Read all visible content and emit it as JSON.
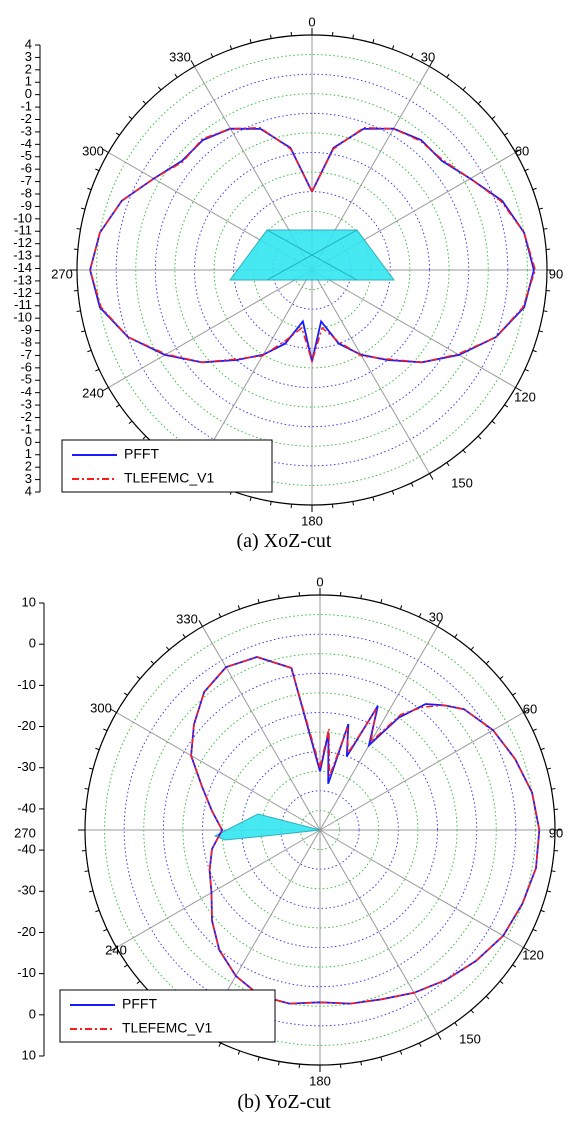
{
  "chart_data": [
    {
      "type": "polar-line",
      "caption": "(a) XoZ-cut",
      "angle_labels": [
        "0",
        "30",
        "60",
        "90",
        "120",
        "150",
        "180",
        "240",
        "270",
        "300",
        "330"
      ],
      "radial_tick_labels": [
        "4",
        "3",
        "2",
        "1",
        "0",
        "-1",
        "-2",
        "-3",
        "-4",
        "-5",
        "-6",
        "-7",
        "-8",
        "-9",
        "-10",
        "-11",
        "-12",
        "-13",
        "-14",
        "-13",
        "-12",
        "-11",
        "-10",
        "-9",
        "-8",
        "-7",
        "-6",
        "-5",
        "-4",
        "-3",
        "-2",
        "-1",
        "0",
        "1",
        "2",
        "3",
        "4"
      ],
      "radial_range": [
        -14,
        4
      ],
      "legend": [
        {
          "name": "PFFT",
          "color": "#1a1aff",
          "style": "solid"
        },
        {
          "name": "TLEFEMC_V1",
          "color": "#ff1a1a",
          "style": "dash-dot"
        }
      ],
      "grid": {
        "spokes_color": "#9a9a9a",
        "major_rings_color": "#2a2aee",
        "minor_rings_color": "#22bb22"
      },
      "series": [
        {
          "name": "PFFT",
          "theta": [
            0,
            10,
            20,
            30,
            40,
            50,
            60,
            70,
            80,
            90,
            100,
            110,
            120,
            130,
            140,
            150,
            160,
            170,
            180,
            190,
            200,
            210,
            220,
            230,
            240,
            250,
            260,
            270,
            280,
            290,
            300,
            310,
            320,
            330,
            340,
            350
          ],
          "r": [
            -8,
            -4.5,
            -2.5,
            -1.5,
            -1,
            -1,
            0,
            1.5,
            2.5,
            3,
            2.5,
            1,
            -1,
            -3,
            -5,
            -6.5,
            -8,
            -10,
            -7,
            -10,
            -8,
            -6.5,
            -5,
            -3,
            -1,
            1,
            2.5,
            3,
            2.5,
            1.5,
            0,
            -1,
            -1,
            -1.5,
            -2.5,
            -4.5
          ]
        },
        {
          "name": "TLEFEMC_V1",
          "theta": [
            0,
            10,
            20,
            30,
            40,
            50,
            60,
            70,
            80,
            90,
            100,
            110,
            120,
            130,
            140,
            150,
            160,
            170,
            180,
            190,
            200,
            210,
            220,
            230,
            240,
            250,
            260,
            270,
            280,
            290,
            300,
            310,
            320,
            330,
            340,
            350
          ],
          "r": [
            -8,
            -4.6,
            -2.4,
            -1.5,
            -1.1,
            -0.9,
            0,
            1.4,
            2.5,
            3.1,
            2.4,
            1,
            -1.1,
            -3,
            -5.1,
            -6.4,
            -8.2,
            -9.5,
            -7,
            -9.5,
            -8.3,
            -6.4,
            -5.1,
            -3,
            -1.1,
            1,
            2.4,
            3,
            2.5,
            1.5,
            0,
            -1.1,
            -0.9,
            -1.5,
            -2.4,
            -4.6
          ]
        }
      ]
    },
    {
      "type": "polar-line",
      "caption": "(b) YoZ-cut",
      "angle_labels": [
        "0",
        "30",
        "60",
        "90",
        "120",
        "150",
        "180",
        "240",
        "270",
        "300",
        "330"
      ],
      "radial_tick_labels": [
        "10",
        "0",
        "-10",
        "-20",
        "-30",
        "-40",
        "-40",
        "-30",
        "-20",
        "-10",
        "0",
        "10"
      ],
      "radial_range": [
        -50,
        10
      ],
      "legend": [
        {
          "name": "PFFT",
          "color": "#1a1aff",
          "style": "solid"
        },
        {
          "name": "TLEFEMC_V1",
          "color": "#ff1a1a",
          "style": "dash-dot"
        }
      ],
      "grid": {
        "spokes_color": "#9a9a9a",
        "major_rings_color": "#2a2aee",
        "minor_rings_color": "#22bb22"
      },
      "series": [
        {
          "name": "PFFT",
          "theta": [
            0,
            5,
            10,
            15,
            20,
            25,
            30,
            35,
            40,
            45,
            50,
            60,
            70,
            80,
            90,
            100,
            110,
            120,
            130,
            140,
            150,
            160,
            170,
            180,
            190,
            200,
            210,
            220,
            230,
            240,
            250,
            260,
            270,
            280,
            290,
            300,
            310,
            320,
            330,
            340,
            350
          ],
          "r": [
            -35,
            -25,
            -38,
            -22,
            -30,
            -15,
            -25,
            -15,
            -8,
            -5,
            -2,
            1,
            3,
            5,
            6,
            6,
            5,
            4,
            2,
            0,
            -2,
            -4,
            -5,
            -6,
            -5,
            -5,
            -7,
            -10,
            -14,
            -18,
            -20,
            -22,
            -25,
            -22,
            -18,
            -12,
            -8,
            -4,
            -2,
            -3,
            -8
          ]
        },
        {
          "name": "TLEFEMC_V1",
          "theta": [
            0,
            5,
            10,
            15,
            20,
            25,
            30,
            35,
            40,
            45,
            50,
            60,
            70,
            80,
            90,
            100,
            110,
            120,
            130,
            140,
            150,
            160,
            170,
            180,
            190,
            200,
            210,
            220,
            230,
            240,
            250,
            260,
            270,
            280,
            290,
            300,
            310,
            320,
            330,
            340,
            350
          ],
          "r": [
            -34,
            -24,
            -36,
            -23,
            -29,
            -16,
            -24,
            -14,
            -9,
            -5,
            -2,
            1,
            3,
            5,
            6,
            6,
            5,
            4,
            2,
            0,
            -2,
            -4,
            -5,
            -6,
            -5,
            -5,
            -7,
            -10,
            -14,
            -18,
            -20,
            -22,
            -25,
            -22,
            -18,
            -12,
            -8,
            -4,
            -2,
            -3,
            -8
          ]
        }
      ]
    }
  ]
}
